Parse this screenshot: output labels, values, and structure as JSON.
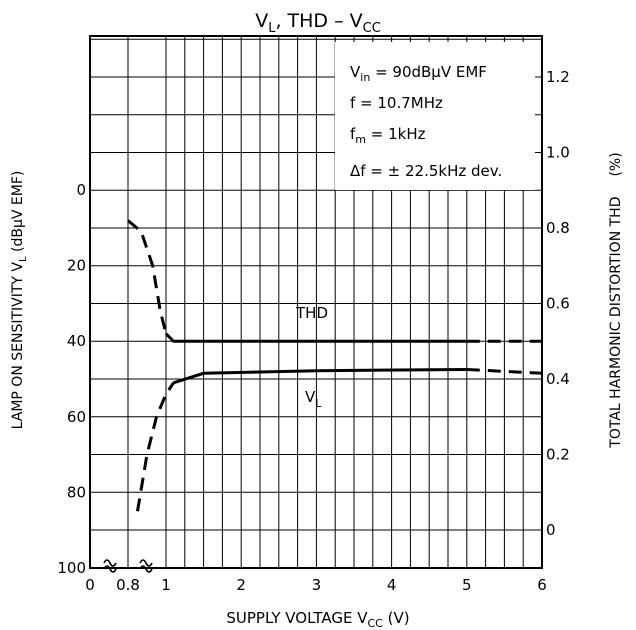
{
  "chart_data": {
    "type": "line",
    "title": {
      "main": "V",
      "main_sub": "L",
      "rest": ", THD  –  V",
      "rest_sub": "CC"
    },
    "xlabel": {
      "main": "SUPPLY VOLTAGE   V",
      "sub": "CC",
      "unit": "  (V)"
    },
    "ylabel_left": {
      "main": "LAMP ON SENSITIVITY    V",
      "sub": "L",
      "unit": "   (dBμV EMF)"
    },
    "ylabel_right": {
      "main": "TOTAL HARMONIC DISTORTION    THD",
      "unit": "(%)"
    },
    "x_ticks": [
      "0",
      "0.8",
      "1",
      "2",
      "3",
      "4",
      "5",
      "6"
    ],
    "y_left_ticks": [
      "0",
      "20",
      "40",
      "60",
      "80",
      "100"
    ],
    "y_right_ticks": [
      "0",
      "0.2",
      "0.4",
      "0.6",
      "0.8",
      "1.0",
      "1.2"
    ],
    "conditions": [
      {
        "main": "V",
        "sub": "in",
        "rest": " = 90dBμV  EMF"
      },
      {
        "main": "f = 10.7MHz",
        "sub": "",
        "rest": ""
      },
      {
        "main": "f",
        "sub": "m",
        "rest": " = 1kHz"
      },
      {
        "main": "Δf = ± 22.5kHz  dev.",
        "sub": "",
        "rest": ""
      }
    ],
    "series": [
      {
        "name": "THD",
        "axis": "right",
        "points": [
          [
            0.8,
            0.82
          ],
          [
            0.87,
            0.79
          ],
          [
            0.93,
            0.7
          ],
          [
            0.97,
            0.58
          ],
          [
            1.0,
            0.52
          ],
          [
            1.1,
            0.5
          ],
          [
            2.0,
            0.5
          ],
          [
            4.0,
            0.5
          ],
          [
            5.0,
            0.5
          ],
          [
            6.0,
            0.5
          ]
        ]
      },
      {
        "name": "V",
        "name_sub": "L",
        "axis": "left",
        "points": [
          [
            0.85,
            85
          ],
          [
            0.9,
            70
          ],
          [
            0.95,
            60
          ],
          [
            1.0,
            54
          ],
          [
            1.1,
            51
          ],
          [
            1.5,
            48.5
          ],
          [
            3.0,
            47.8
          ],
          [
            5.0,
            47.5
          ],
          [
            6.0,
            48.5
          ]
        ]
      }
    ],
    "xlim": [
      0,
      6
    ],
    "ylim_left": [
      100,
      0
    ],
    "ylim_right": [
      -0.1,
      1.3
    ],
    "grid": true
  }
}
